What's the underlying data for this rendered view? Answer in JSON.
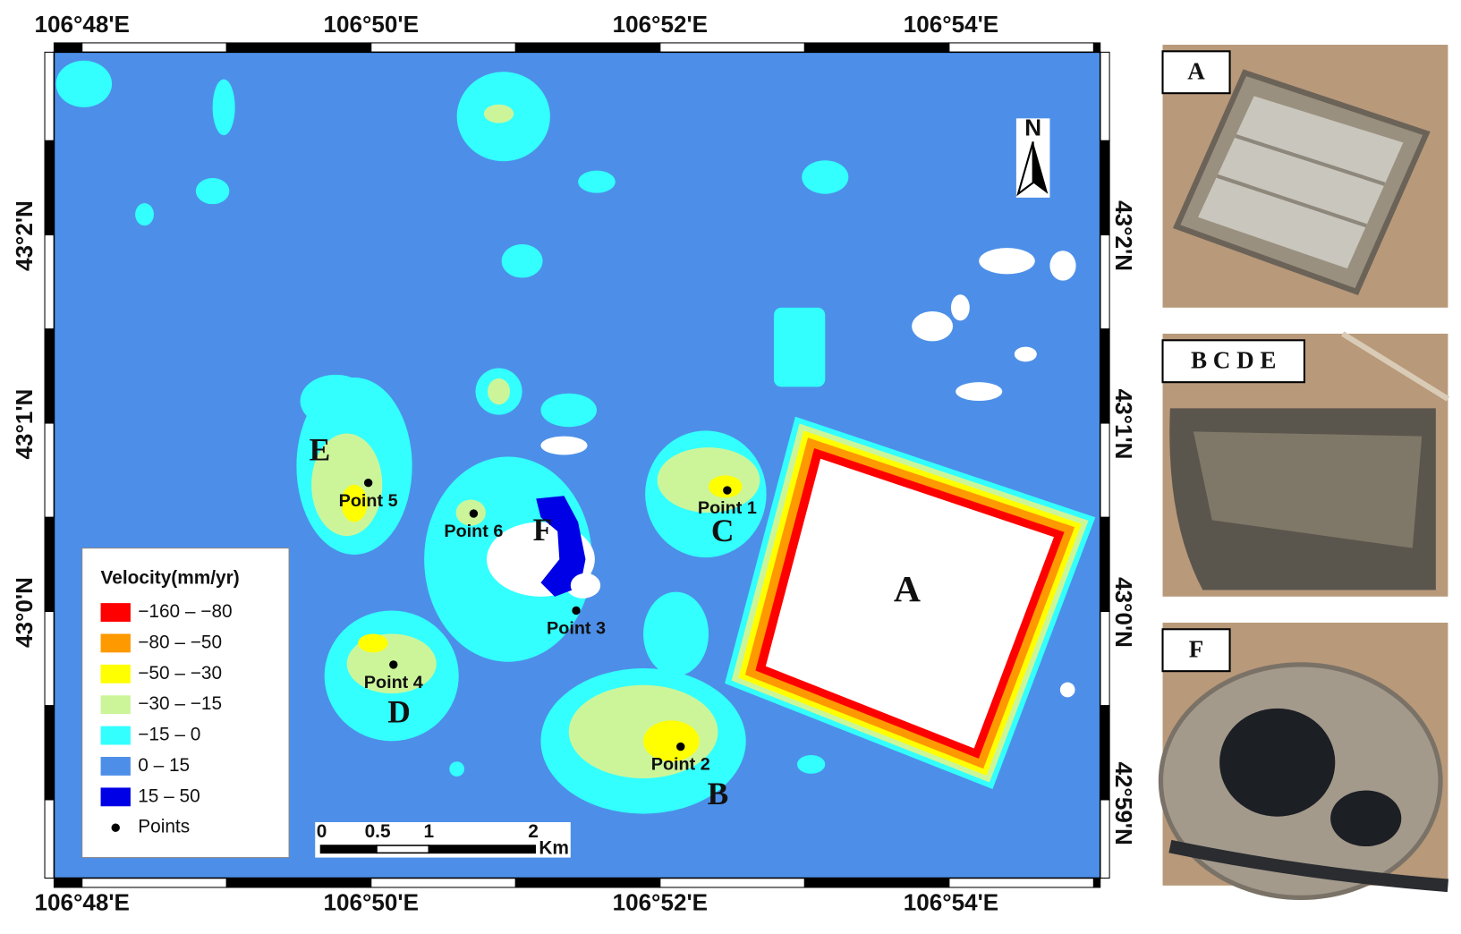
{
  "map": {
    "lon_labels_top": [
      "106°48'E",
      "106°50'E",
      "106°52'E",
      "106°54'E"
    ],
    "lon_labels_bottom": [
      "106°48'E",
      "106°50'E",
      "106°52'E",
      "106°54'E"
    ],
    "lat_labels_left": [
      "43°2'N",
      "43°1'N",
      "43°0'N"
    ],
    "lat_labels_right": [
      "43°2'N",
      "43°1'N",
      "43°0'N",
      "42°59'N"
    ],
    "north": "N",
    "legend": {
      "title": "Velocity(mm/yr)",
      "items": [
        {
          "label": "−160 – −80",
          "color": "#ff0000"
        },
        {
          "label": "−80 – −50",
          "color": "#ff9900"
        },
        {
          "label": "−50 – −30",
          "color": "#ffff00"
        },
        {
          "label": "−30 – −15",
          "color": "#ccf59a"
        },
        {
          "label": "−15 – 0",
          "color": "#33ffff"
        },
        {
          "label": "0 – 15",
          "color": "#4d8fe8"
        },
        {
          "label": "15 – 50",
          "color": "#0000e6"
        }
      ],
      "points_label": "Points"
    },
    "sites": [
      "A",
      "B",
      "C",
      "D",
      "E",
      "F"
    ],
    "points": [
      "Point 1",
      "Point 2",
      "Point 3",
      "Point 4",
      "Point 5",
      "Point 6"
    ],
    "scale_bar": {
      "labels": [
        "0",
        "0.5",
        "1",
        "2"
      ],
      "unit": "Km"
    }
  },
  "panels": [
    {
      "label": "A"
    },
    {
      "label": "B C D E"
    },
    {
      "label": "F"
    }
  ]
}
